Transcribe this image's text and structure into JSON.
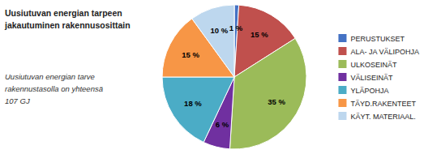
{
  "chart_data": {
    "type": "pie",
    "title": [
      "Uusiutuvan energian tarpeen",
      "jakautuminen rakennusosittain"
    ],
    "subtitle": [
      "Uusiutuvan energian tarve",
      "rakennustasolla on yhteensä",
      "107 GJ"
    ],
    "categories": [
      "PERUSTUKSET",
      "ALA- JA VÄLIPOHJA",
      "ULKOSEINÄT",
      "VÄLISEINÄT",
      "YLÄPOHJA",
      "TÄYD.RAKENTEET",
      "KÄYT. MATERIAAL."
    ],
    "values": [
      1,
      15,
      35,
      6,
      18,
      15,
      10
    ],
    "value_labels": [
      "1 %",
      "15 %",
      "35 %",
      "6 %",
      "18 %",
      "15 %",
      "10 %"
    ],
    "colors": [
      "#4472C4",
      "#C0504D",
      "#9BBB59",
      "#7030A0",
      "#4BACC6",
      "#F79646",
      "#BDD7EE"
    ],
    "data_labels": true,
    "legend": "right"
  }
}
